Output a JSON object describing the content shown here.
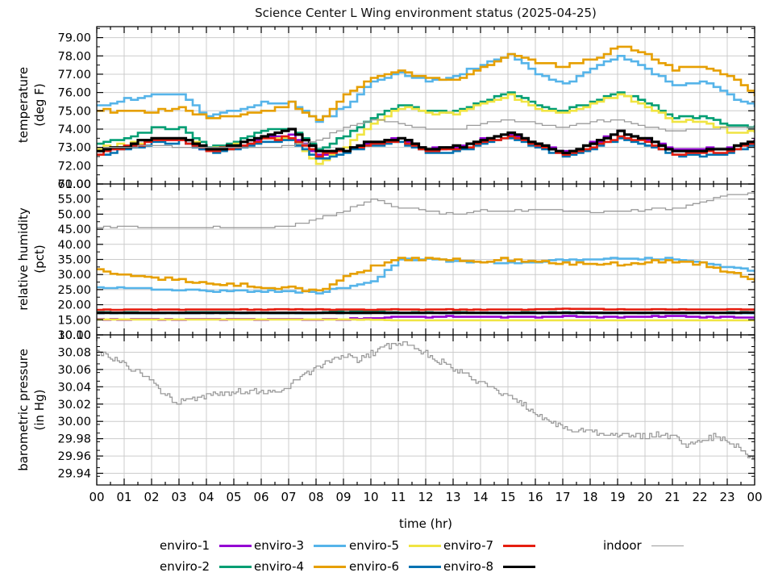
{
  "title": "Science Center L Wing environment status (2025-04-25)",
  "x_axis": {
    "title": "time (hr)",
    "min": 0,
    "max": 24,
    "major": 1,
    "minor": 0.5,
    "tick_labels": [
      "00",
      "01",
      "02",
      "03",
      "04",
      "05",
      "06",
      "07",
      "08",
      "09",
      "10",
      "11",
      "12",
      "13",
      "14",
      "15",
      "16",
      "17",
      "18",
      "19",
      "20",
      "21",
      "22",
      "23",
      "00"
    ]
  },
  "colors": {
    "enviro-1": "#9400d3",
    "enviro-2": "#009e73",
    "enviro-3": "#56b4e9",
    "enviro-4": "#e69f00",
    "enviro-5": "#f0e442",
    "enviro-6": "#0072b2",
    "enviro-7": "#e51e10",
    "enviro-8": "#000000",
    "indoor": "#9b9b9b",
    "grid": "#cccccc",
    "frame": "#000000"
  },
  "legend": {
    "rows": [
      [
        {
          "label": "enviro-1",
          "key": "enviro-1",
          "thin": false
        },
        {
          "label": "enviro-3",
          "key": "enviro-3",
          "thin": false
        },
        {
          "label": "enviro-5",
          "key": "enviro-5",
          "thin": false
        },
        {
          "label": "enviro-7",
          "key": "enviro-7",
          "thin": false
        },
        {
          "label": "indoor",
          "key": "indoor",
          "thin": true
        }
      ],
      [
        {
          "label": "enviro-2",
          "key": "enviro-2",
          "thin": false
        },
        {
          "label": "enviro-4",
          "key": "enviro-4",
          "thin": false
        },
        {
          "label": "enviro-6",
          "key": "enviro-6",
          "thin": false
        },
        {
          "label": "enviro-8",
          "key": "enviro-8",
          "thin": false
        }
      ]
    ]
  },
  "chart_data": [
    {
      "type": "line",
      "name": "temperature",
      "ylabel_lines": [
        "temperature",
        "(deg F)"
      ],
      "ymin": 71,
      "ymax": 79.6,
      "yticks": [
        71,
        72,
        73,
        74,
        75,
        76,
        77,
        78,
        79
      ],
      "yminor": 0.5,
      "x_step": 1,
      "substeps": 4,
      "series": [
        {
          "name": "enviro-1",
          "color": "enviro-1",
          "lw": 2.6,
          "noise": 0.06,
          "quant": 0.1,
          "values": [
            72.8,
            73.0,
            73.4,
            73.4,
            72.8,
            73.0,
            73.5,
            73.7,
            72.6,
            72.8,
            73.3,
            73.5,
            72.9,
            73.0,
            73.4,
            73.7,
            73.2,
            72.7,
            73.2,
            73.9,
            73.4,
            72.9,
            72.9,
            73.0,
            73.5
          ]
        },
        {
          "name": "enviro-2",
          "color": "enviro-2",
          "lw": 2.6,
          "noise": 0.06,
          "quant": 0.1,
          "values": [
            73.2,
            73.5,
            74.0,
            74.1,
            73.0,
            73.3,
            73.9,
            74.1,
            72.9,
            73.6,
            74.6,
            75.3,
            75.0,
            75.0,
            75.5,
            76.0,
            75.3,
            75.0,
            75.5,
            76.0,
            75.4,
            74.6,
            74.7,
            74.2,
            74.2
          ]
        },
        {
          "name": "enviro-3",
          "color": "enviro-3",
          "lw": 2.6,
          "noise": 0.08,
          "quant": 0.1,
          "values": [
            75.3,
            75.6,
            75.9,
            75.9,
            74.7,
            75.0,
            75.4,
            75.5,
            74.4,
            75.2,
            76.6,
            77.1,
            76.6,
            76.9,
            77.5,
            78.1,
            77.0,
            76.5,
            77.3,
            78.0,
            77.3,
            76.4,
            76.6,
            75.9,
            75.2
          ]
        },
        {
          "name": "enviro-4",
          "color": "enviro-4",
          "lw": 2.6,
          "noise": 0.08,
          "quant": 0.1,
          "values": [
            75.0,
            75.0,
            75.0,
            75.2,
            74.6,
            74.7,
            75.0,
            75.4,
            74.4,
            75.8,
            76.8,
            77.2,
            76.8,
            76.7,
            77.4,
            78.1,
            77.6,
            77.4,
            77.8,
            78.5,
            78.1,
            77.3,
            77.4,
            76.9,
            75.9
          ]
        },
        {
          "name": "enviro-5",
          "color": "enviro-5",
          "lw": 2.6,
          "noise": 0.06,
          "quant": 0.1,
          "values": [
            73.0,
            73.2,
            73.4,
            73.5,
            72.9,
            73.2,
            73.5,
            73.6,
            72.1,
            73.0,
            74.3,
            75.2,
            74.9,
            74.8,
            75.4,
            75.9,
            75.1,
            74.9,
            75.4,
            75.9,
            75.2,
            74.4,
            74.4,
            73.9,
            73.8
          ]
        },
        {
          "name": "enviro-6",
          "color": "enviro-6",
          "lw": 2.6,
          "noise": 0.06,
          "quant": 0.1,
          "values": [
            72.6,
            72.9,
            73.3,
            73.3,
            72.7,
            72.9,
            73.3,
            73.4,
            72.4,
            72.7,
            73.1,
            73.3,
            72.7,
            72.8,
            73.2,
            73.5,
            73.0,
            72.5,
            73.0,
            73.5,
            73.1,
            72.6,
            72.6,
            72.7,
            73.2
          ]
        },
        {
          "name": "enviro-7",
          "color": "enviro-7",
          "lw": 2.6,
          "noise": 0.06,
          "quant": 0.1,
          "values": [
            72.7,
            73.0,
            73.4,
            73.4,
            72.8,
            73.0,
            73.4,
            73.6,
            72.6,
            72.8,
            73.2,
            73.4,
            72.8,
            72.9,
            73.3,
            73.6,
            73.1,
            72.6,
            73.1,
            73.6,
            73.3,
            72.7,
            72.7,
            72.8,
            73.3
          ]
        },
        {
          "name": "enviro-8",
          "color": "enviro-8",
          "lw": 3.2,
          "noise": 0.06,
          "quant": 0.1,
          "values": [
            72.8,
            73.1,
            73.5,
            73.5,
            72.9,
            73.1,
            73.6,
            74.0,
            72.7,
            72.9,
            73.3,
            73.5,
            72.9,
            73.0,
            73.4,
            73.8,
            73.2,
            72.7,
            73.2,
            73.8,
            73.4,
            72.8,
            72.8,
            72.9,
            73.4
          ]
        },
        {
          "name": "indoor",
          "color": "indoor",
          "lw": 1.3,
          "noise": 0.04,
          "quant": 0.1,
          "values": [
            73.0,
            73.0,
            73.1,
            73.0,
            73.0,
            73.0,
            73.0,
            73.1,
            73.4,
            74.1,
            74.5,
            74.3,
            74.0,
            74.0,
            74.3,
            74.5,
            74.3,
            74.1,
            74.4,
            74.5,
            74.1,
            73.9,
            74.0,
            74.1,
            74.1
          ]
        }
      ]
    },
    {
      "type": "line",
      "name": "relative humidity",
      "ylabel_lines": [
        "relative humidity",
        "(pct)"
      ],
      "ymin": 10,
      "ymax": 60,
      "yticks": [
        10,
        15,
        20,
        25,
        30,
        35,
        40,
        45,
        50,
        55,
        60
      ],
      "yminor": 2.5,
      "x_step": 1,
      "substeps": 4,
      "series": [
        {
          "name": "enviro-1",
          "color": "enviro-1",
          "lw": 2.6,
          "noise": 0.15,
          "quant": 0.25,
          "values": [
            15.2,
            15.2,
            15.2,
            15.2,
            15.2,
            15.2,
            15.2,
            15.2,
            15.2,
            15.2,
            15.6,
            16.0,
            16.0,
            16.1,
            16.0,
            16.0,
            15.9,
            16.1,
            16.0,
            15.9,
            16.0,
            16.2,
            15.9,
            15.8,
            15.8
          ]
        },
        {
          "name": "enviro-2",
          "color": "enviro-2",
          "lw": 2.6,
          "noise": 0.05,
          "quant": 0.25,
          "values": [
            17.35,
            17.35,
            17.35,
            17.35,
            17.6,
            17.35,
            17.35,
            17.35,
            17.35,
            18.2,
            17.8,
            17.35,
            17.35,
            17.35,
            17.35,
            17.35,
            17.35,
            17.35,
            17.35,
            17.35,
            17.35,
            17.35,
            17.35,
            17.35,
            17.35
          ]
        },
        {
          "name": "enviro-3",
          "color": "enviro-3",
          "lw": 2.6,
          "noise": 0.3,
          "quant": 0.25,
          "values": [
            25.6,
            25.6,
            25.2,
            25.0,
            24.6,
            24.5,
            24.5,
            24.4,
            24.0,
            25.8,
            27.5,
            35.0,
            35.0,
            34.4,
            34.2,
            33.8,
            34.3,
            34.8,
            35.0,
            35.3,
            35.2,
            35.3,
            34.0,
            32.5,
            31.0
          ]
        },
        {
          "name": "enviro-4",
          "color": "enviro-4",
          "lw": 2.6,
          "noise": 0.6,
          "quant": 0.25,
          "values": [
            31.5,
            30.0,
            29.0,
            28.0,
            27.0,
            26.5,
            26.0,
            25.5,
            24.3,
            29.5,
            32.5,
            35.2,
            35.0,
            35.0,
            34.6,
            35.0,
            34.4,
            33.8,
            33.3,
            33.5,
            34.3,
            34.6,
            33.5,
            30.8,
            28.0
          ]
        },
        {
          "name": "enviro-5",
          "color": "enviro-5",
          "lw": 2.6,
          "noise": 0.05,
          "quant": 0.1,
          "values": [
            15.1,
            15.1,
            15.1,
            15.1,
            15.1,
            15.1,
            15.1,
            15.1,
            15.1,
            15.1,
            15.0,
            14.8,
            14.8,
            14.8,
            14.8,
            14.8,
            14.8,
            14.8,
            14.8,
            14.8,
            14.8,
            14.8,
            14.8,
            14.8,
            14.8
          ]
        },
        {
          "name": "enviro-6",
          "color": "enviro-6",
          "lw": 2.6,
          "noise": 0.03,
          "quant": 0.1,
          "values": [
            17.25,
            17.25,
            17.25,
            17.25,
            17.25,
            17.25,
            17.25,
            17.25,
            17.25,
            17.25,
            17.25,
            17.25,
            17.25,
            17.25,
            17.25,
            17.25,
            17.25,
            17.25,
            17.25,
            17.25,
            17.25,
            17.25,
            17.25,
            17.25,
            17.25
          ]
        },
        {
          "name": "enviro-7",
          "color": "enviro-7",
          "lw": 2.6,
          "noise": 0.08,
          "quant": 0.1,
          "values": [
            18.4,
            18.4,
            18.4,
            18.4,
            18.4,
            18.4,
            18.4,
            18.4,
            18.4,
            18.4,
            18.4,
            18.4,
            18.4,
            18.4,
            18.4,
            18.4,
            18.4,
            18.6,
            18.6,
            18.4,
            18.4,
            18.4,
            18.4,
            18.5,
            18.4
          ]
        },
        {
          "name": "enviro-8",
          "color": "enviro-8",
          "lw": 3.2,
          "noise": 0.04,
          "quant": 0.1,
          "values": [
            17.3,
            17.3,
            17.3,
            17.3,
            17.3,
            17.3,
            17.3,
            17.3,
            17.3,
            17.3,
            17.3,
            17.3,
            17.3,
            17.3,
            17.3,
            17.3,
            17.3,
            17.3,
            17.3,
            17.3,
            17.3,
            17.3,
            17.3,
            17.3,
            17.45
          ]
        },
        {
          "name": "indoor",
          "color": "indoor",
          "lw": 1.3,
          "noise": 0.3,
          "quant": 0.5,
          "values": [
            45.5,
            46.0,
            45.5,
            45.5,
            45.5,
            45.5,
            45.5,
            46.0,
            48.5,
            51.0,
            55.0,
            52.0,
            51.0,
            50.0,
            51.0,
            51.0,
            51.5,
            51.0,
            50.5,
            51.0,
            51.5,
            52.0,
            54.0,
            56.5,
            57.0
          ]
        }
      ]
    },
    {
      "type": "line",
      "name": "barometric pressure",
      "ylabel_lines": [
        "barometric pressure",
        "(in Hg)"
      ],
      "ymin": 29.9265,
      "ymax": 30.1,
      "yticks": [
        29.94,
        29.96,
        29.98,
        30.0,
        30.02,
        30.04,
        30.06,
        30.08,
        30.1
      ],
      "yminor": 0.01,
      "x_step": 0.5,
      "substeps": 6,
      "series": [
        {
          "name": "indoor",
          "color": "indoor",
          "lw": 1.3,
          "noise": 0.0035,
          "quant": 0.002,
          "values": [
            30.08,
            30.074,
            30.066,
            30.058,
            30.046,
            30.03,
            30.022,
            30.026,
            30.031,
            30.033,
            30.034,
            30.035,
            30.033,
            30.036,
            30.04,
            30.052,
            30.062,
            30.07,
            30.076,
            30.071,
            30.078,
            30.086,
            30.092,
            30.087,
            30.079,
            30.07,
            30.061,
            30.053,
            30.044,
            30.037,
            30.029,
            30.02,
            30.01,
            30.0,
            29.993,
            29.99,
            29.988,
            29.986,
            29.985,
            29.984,
            29.983,
            29.985,
            29.982,
            29.972,
            29.978,
            29.983,
            29.978,
            29.968,
            29.953
          ]
        }
      ]
    }
  ]
}
